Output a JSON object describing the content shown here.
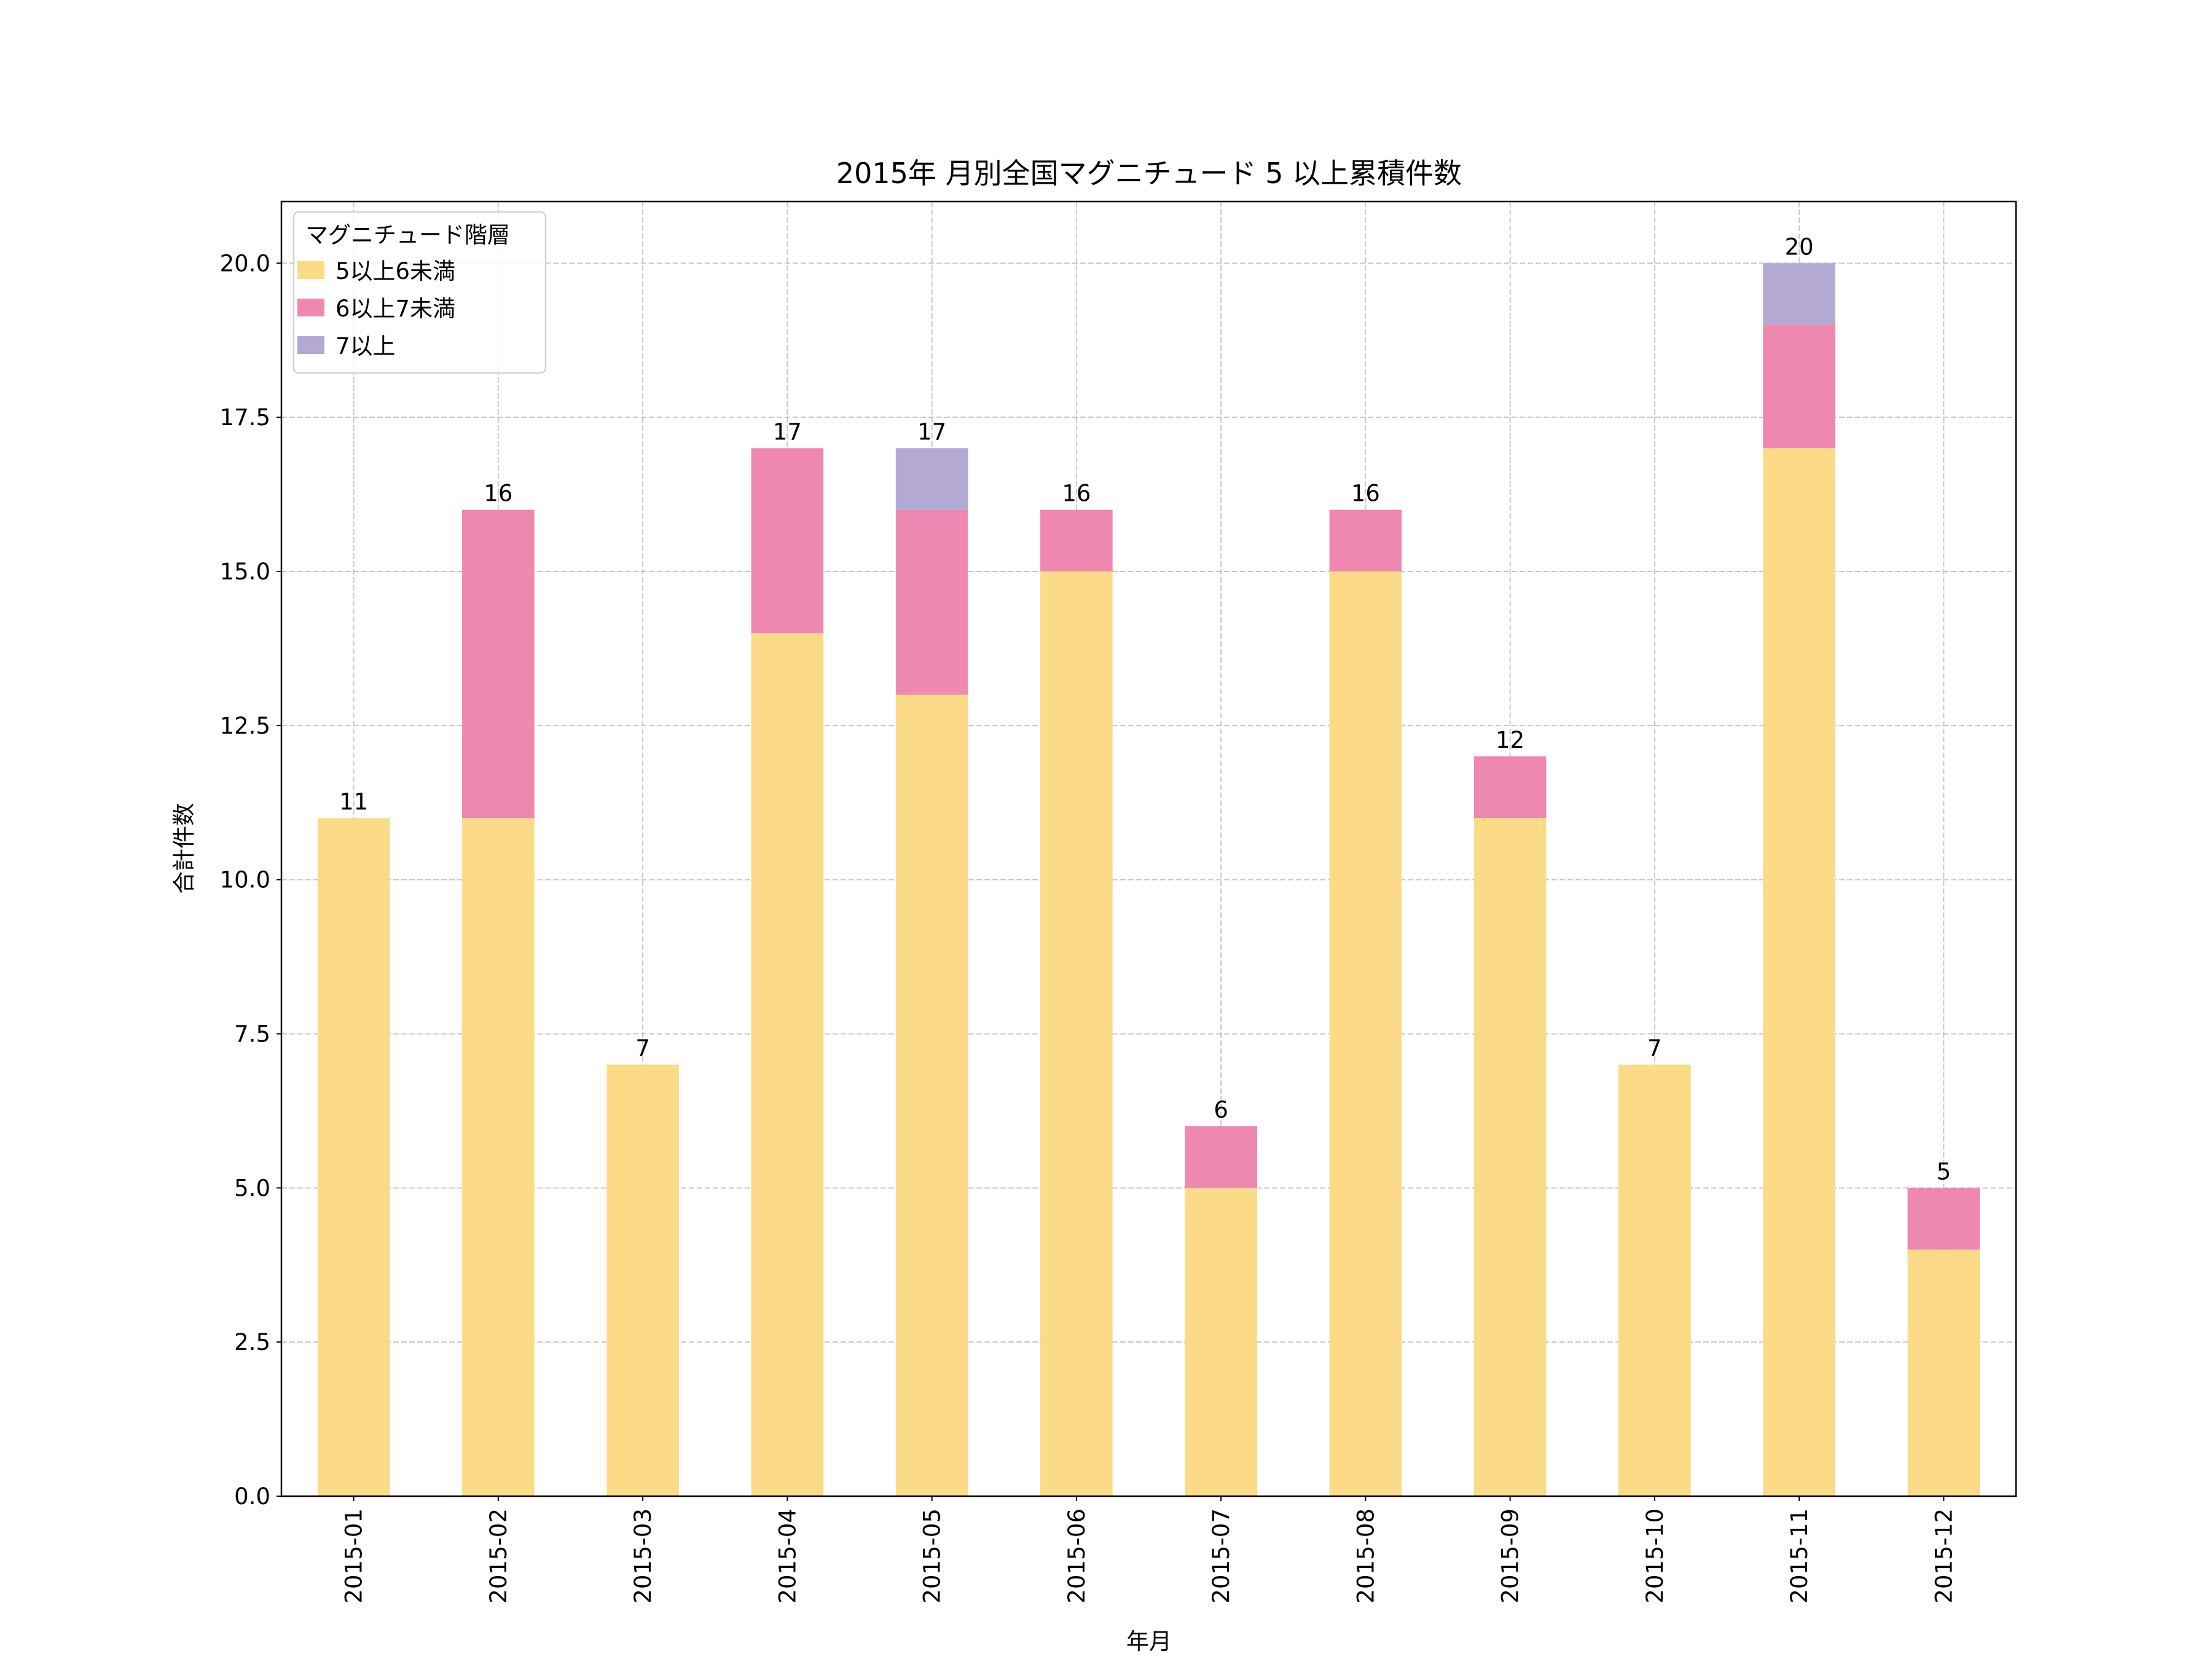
{
  "chart_data": {
    "type": "bar",
    "stacked": true,
    "title": "2015年 月別全国マグニチュード 5 以上累積件数",
    "xlabel": "年月",
    "ylabel": "合計件数",
    "categories": [
      "2015-01",
      "2015-02",
      "2015-03",
      "2015-04",
      "2015-05",
      "2015-06",
      "2015-07",
      "2015-08",
      "2015-09",
      "2015-10",
      "2015-11",
      "2015-12"
    ],
    "series": [
      {
        "name": "5以上6未満",
        "color": "#fcdb88",
        "values": [
          11,
          11,
          7,
          14,
          13,
          15,
          5,
          15,
          11,
          7,
          17,
          4
        ]
      },
      {
        "name": "6以上7未満",
        "color": "#ee88b0",
        "values": [
          0,
          5,
          0,
          3,
          3,
          1,
          1,
          1,
          1,
          0,
          2,
          1
        ]
      },
      {
        "name": "7以上",
        "color": "#b3a9d2",
        "values": [
          0,
          0,
          0,
          0,
          1,
          0,
          0,
          0,
          0,
          0,
          1,
          0
        ]
      }
    ],
    "totals": [
      11,
      16,
      7,
      17,
      17,
      16,
      6,
      16,
      12,
      7,
      20,
      5
    ],
    "ylim": [
      0,
      21
    ],
    "yticks": [
      "0.0",
      "2.5",
      "5.0",
      "7.5",
      "10.0",
      "12.5",
      "15.0",
      "17.5",
      "20.0"
    ],
    "grid": true,
    "legend": {
      "title": "マグニチュード階層",
      "position": "top-left"
    }
  }
}
